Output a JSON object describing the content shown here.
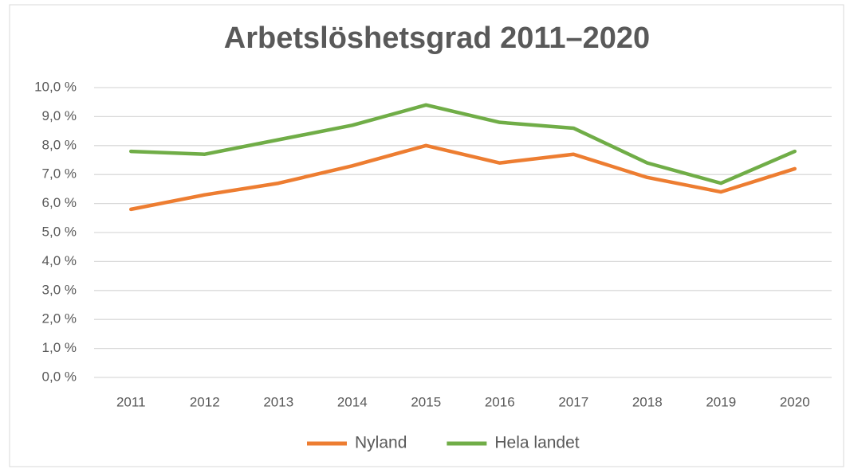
{
  "chart_data": {
    "type": "line",
    "title": "Arbetslöshetsgrad 2011–2020",
    "categories": [
      "2011",
      "2012",
      "2013",
      "2014",
      "2015",
      "2016",
      "2017",
      "2018",
      "2019",
      "2020"
    ],
    "series": [
      {
        "name": "Nyland",
        "color": "#ed7d31",
        "values": [
          5.8,
          6.3,
          6.7,
          7.3,
          8.0,
          7.4,
          7.7,
          6.9,
          6.4,
          7.2
        ]
      },
      {
        "name": "Hela landet",
        "color": "#70ad47",
        "values": [
          7.8,
          7.7,
          8.2,
          8.7,
          9.4,
          8.8,
          8.6,
          7.4,
          6.7,
          7.8
        ]
      }
    ],
    "ylim": [
      0,
      10
    ],
    "yticks": [
      {
        "value": 0,
        "label": "0,0 %"
      },
      {
        "value": 1,
        "label": "1,0 %"
      },
      {
        "value": 2,
        "label": "2,0 %"
      },
      {
        "value": 3,
        "label": "3,0 %"
      },
      {
        "value": 4,
        "label": "4,0 %"
      },
      {
        "value": 5,
        "label": "5,0 %"
      },
      {
        "value": 6,
        "label": "6,0 %"
      },
      {
        "value": 7,
        "label": "7,0 %"
      },
      {
        "value": 8,
        "label": "8,0 %"
      },
      {
        "value": 9,
        "label": "9,0 %"
      },
      {
        "value": 10,
        "label": "10,0 %"
      }
    ],
    "grid": true,
    "legend": "bottom"
  }
}
